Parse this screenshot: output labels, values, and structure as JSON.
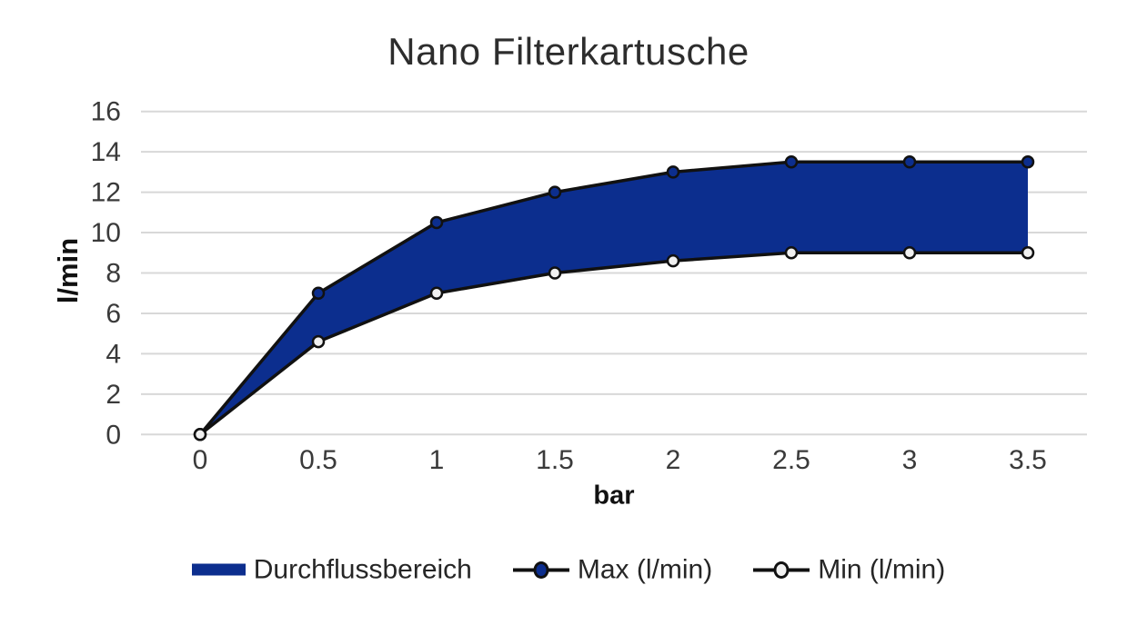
{
  "page": {
    "background": "#ffffff"
  },
  "chart_data": {
    "type": "area",
    "title": "Nano Filterkartusche",
    "xlabel": "bar",
    "ylabel": "l/min",
    "x": [
      0,
      0.5,
      1,
      1.5,
      2,
      2.5,
      3,
      3.5
    ],
    "x_tick_labels": [
      "0",
      "0.5",
      "1",
      "1.5",
      "2",
      "2.5",
      "3",
      "3.5"
    ],
    "xlim": [
      -0.25,
      3.75
    ],
    "ylim": [
      0,
      16
    ],
    "y_ticks": [
      0,
      2,
      4,
      6,
      8,
      10,
      12,
      14,
      16
    ],
    "grid": "horizontal-only",
    "legend_position": "bottom",
    "band": {
      "name": "Durchflussbereich",
      "between": [
        "Max (l/min)",
        "Min (l/min)"
      ]
    },
    "series": [
      {
        "name": "Max (l/min)",
        "values": [
          0,
          7,
          10.5,
          12,
          13,
          13.5,
          13.5,
          13.5
        ],
        "marker": "filled-circle"
      },
      {
        "name": "Min (l/min)",
        "values": [
          0,
          4.6,
          7,
          8,
          8.6,
          9,
          9,
          9
        ],
        "marker": "open-circle"
      }
    ]
  },
  "colors": {
    "band_blue": "#0c2e8e",
    "line_black": "#111111",
    "min_marker_fill": "#f1f1f1",
    "gridline": "#d8d8d8",
    "title_text": "#2d2d2d",
    "tick_text": "#3a3a3a",
    "axis_label_text": "#111111"
  }
}
